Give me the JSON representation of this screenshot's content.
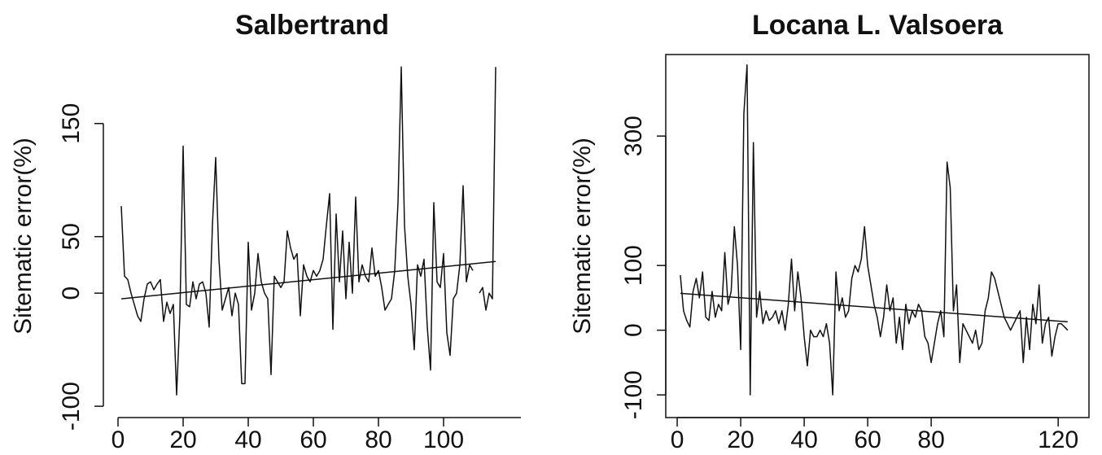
{
  "chart_data": [
    {
      "type": "line",
      "title": "Salbertrand",
      "ylabel": "Sitematic error(%)",
      "frame": false,
      "xlim": [
        -4.5,
        123.75
      ],
      "ylim": [
        -110,
        211
      ],
      "xticks": [
        0,
        20,
        40,
        60,
        80,
        100
      ],
      "yticks": [
        -100,
        0,
        50,
        150
      ],
      "series": [
        {
          "color": "#111111",
          "x": [
            1,
            2,
            3,
            4,
            5,
            6,
            7,
            8,
            9,
            10,
            11,
            12,
            13,
            14,
            15,
            16,
            17,
            18,
            19,
            20,
            21,
            22,
            23,
            24,
            25,
            26,
            27,
            28,
            29,
            30,
            31,
            32,
            33,
            34,
            35,
            36,
            37,
            38,
            39,
            40,
            41,
            42,
            43,
            44,
            45,
            46,
            47,
            48,
            49,
            50,
            51,
            52,
            53,
            54,
            55,
            56,
            57,
            58,
            59,
            60,
            61,
            62,
            63,
            64,
            65,
            66,
            67,
            68,
            69,
            70,
            71,
            72,
            73,
            74,
            75,
            76,
            77,
            78,
            79,
            80,
            81,
            82,
            83,
            84,
            85,
            86,
            87,
            88,
            89,
            90,
            91,
            92,
            93,
            94,
            95,
            96,
            97,
            98,
            99,
            100,
            101,
            102,
            103,
            104,
            105,
            106,
            107,
            108,
            109,
            110,
            111,
            112,
            113,
            114,
            115,
            116
          ],
          "values": [
            77,
            15,
            12,
            0,
            -10,
            -20,
            -25,
            -5,
            8,
            10,
            3,
            8,
            12,
            -25,
            -8,
            -18,
            -10,
            -90,
            -20,
            130,
            -10,
            -12,
            10,
            -5,
            8,
            10,
            0,
            -30,
            60,
            120,
            30,
            -15,
            -5,
            5,
            -20,
            0,
            -10,
            -80,
            -80,
            45,
            -15,
            0,
            35,
            10,
            0,
            -5,
            -72,
            15,
            10,
            5,
            10,
            55,
            40,
            30,
            35,
            -20,
            25,
            15,
            10,
            20,
            15,
            20,
            30,
            60,
            88,
            -32,
            70,
            10,
            55,
            -5,
            45,
            0,
            85,
            10,
            25,
            15,
            10,
            40,
            15,
            20,
            5,
            -15,
            -10,
            -5,
            20,
            80,
            200,
            60,
            15,
            -10,
            -50,
            25,
            15,
            30,
            -30,
            -68,
            80,
            10,
            5,
            35,
            -35,
            -55,
            -5,
            0,
            25,
            95,
            10,
            25,
            20,
            null,
            0,
            5,
            -15,
            0,
            -5,
            200
          ]
        },
        {
          "color": "#111111",
          "x": [
            1,
            116
          ],
          "values": [
            -5,
            28
          ]
        }
      ]
    },
    {
      "type": "line",
      "title": "Locana L. Valsoera",
      "ylabel": "Sitematic error(%)",
      "frame": true,
      "xlim": [
        -3.6,
        129.7
      ],
      "ylim": [
        -135,
        426
      ],
      "xticks": [
        0,
        20,
        40,
        60,
        80,
        120
      ],
      "yticks": [
        -100,
        0,
        100,
        300
      ],
      "series": [
        {
          "color": "#111111",
          "x": [
            1,
            2,
            3,
            4,
            5,
            6,
            7,
            8,
            9,
            10,
            11,
            12,
            13,
            14,
            15,
            16,
            17,
            18,
            19,
            20,
            21,
            22,
            23,
            24,
            25,
            26,
            27,
            28,
            29,
            30,
            31,
            32,
            33,
            34,
            35,
            36,
            37,
            38,
            39,
            40,
            41,
            42,
            43,
            44,
            45,
            46,
            47,
            48,
            49,
            50,
            51,
            52,
            53,
            54,
            55,
            56,
            57,
            58,
            59,
            60,
            61,
            62,
            63,
            64,
            65,
            66,
            67,
            68,
            69,
            70,
            71,
            72,
            73,
            74,
            75,
            76,
            77,
            78,
            79,
            80,
            81,
            82,
            83,
            84,
            85,
            86,
            87,
            88,
            89,
            90,
            91,
            92,
            93,
            94,
            95,
            96,
            97,
            98,
            99,
            100,
            101,
            102,
            103,
            104,
            105,
            106,
            107,
            108,
            109,
            110,
            111,
            112,
            113,
            114,
            115,
            116,
            117,
            118,
            119,
            120,
            121,
            122,
            123
          ],
          "values": [
            85,
            30,
            15,
            5,
            60,
            80,
            50,
            90,
            20,
            15,
            60,
            20,
            40,
            30,
            120,
            40,
            60,
            160,
            100,
            -30,
            335,
            410,
            -100,
            290,
            20,
            60,
            10,
            30,
            15,
            20,
            30,
            10,
            30,
            0,
            40,
            110,
            30,
            90,
            50,
            -10,
            -55,
            0,
            -10,
            -10,
            0,
            -10,
            10,
            -20,
            -100,
            90,
            30,
            50,
            20,
            30,
            80,
            100,
            90,
            110,
            160,
            100,
            70,
            40,
            20,
            -10,
            20,
            70,
            30,
            50,
            -20,
            20,
            -30,
            40,
            10,
            30,
            20,
            40,
            30,
            -10,
            -20,
            -50,
            -20,
            10,
            30,
            -10,
            260,
            220,
            30,
            70,
            -50,
            10,
            0,
            -10,
            -20,
            0,
            -30,
            -20,
            30,
            50,
            90,
            80,
            60,
            40,
            20,
            10,
            0,
            10,
            20,
            30,
            -50,
            20,
            -30,
            40,
            10,
            70,
            -20,
            10,
            20,
            -40,
            -10,
            10,
            10,
            5,
            0
          ]
        },
        {
          "color": "#111111",
          "x": [
            1,
            123
          ],
          "values": [
            57,
            13
          ]
        }
      ]
    }
  ]
}
